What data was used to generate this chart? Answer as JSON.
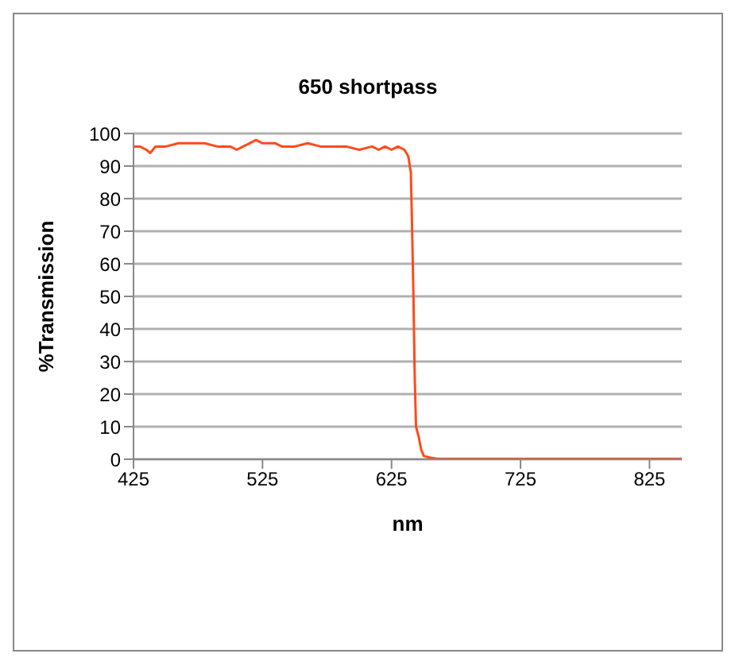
{
  "chart_data": {
    "type": "line",
    "title": "650 shortpass",
    "xlabel": "nm",
    "ylabel": "%Transmission",
    "xlim": [
      425,
      850
    ],
    "xticks": [
      425,
      525,
      625,
      725,
      825
    ],
    "ylim": [
      0,
      100
    ],
    "yticks": [
      0,
      10,
      20,
      30,
      40,
      50,
      60,
      70,
      80,
      90,
      100
    ],
    "grid": "y",
    "marker": "none",
    "line_style": "solid",
    "x": [
      425,
      430,
      435,
      438,
      442,
      450,
      460,
      470,
      480,
      490,
      500,
      505,
      510,
      515,
      520,
      525,
      535,
      540,
      550,
      560,
      570,
      580,
      590,
      600,
      610,
      615,
      620,
      625,
      630,
      635,
      638,
      640,
      641,
      642,
      643,
      644,
      646,
      648,
      650,
      655,
      660,
      700,
      850
    ],
    "series": [
      {
        "color": "#ff4a1c",
        "values": [
          96,
          96,
          95,
          94,
          96,
          96,
          97,
          97,
          97,
          96,
          96,
          95,
          96,
          97,
          98,
          97,
          97,
          96,
          96,
          97,
          96,
          96,
          96,
          95,
          96,
          95,
          96,
          95,
          96,
          95,
          93,
          88,
          70,
          50,
          25,
          10,
          7,
          3,
          1,
          0.5,
          0.2,
          0.1,
          0.1
        ]
      }
    ]
  }
}
